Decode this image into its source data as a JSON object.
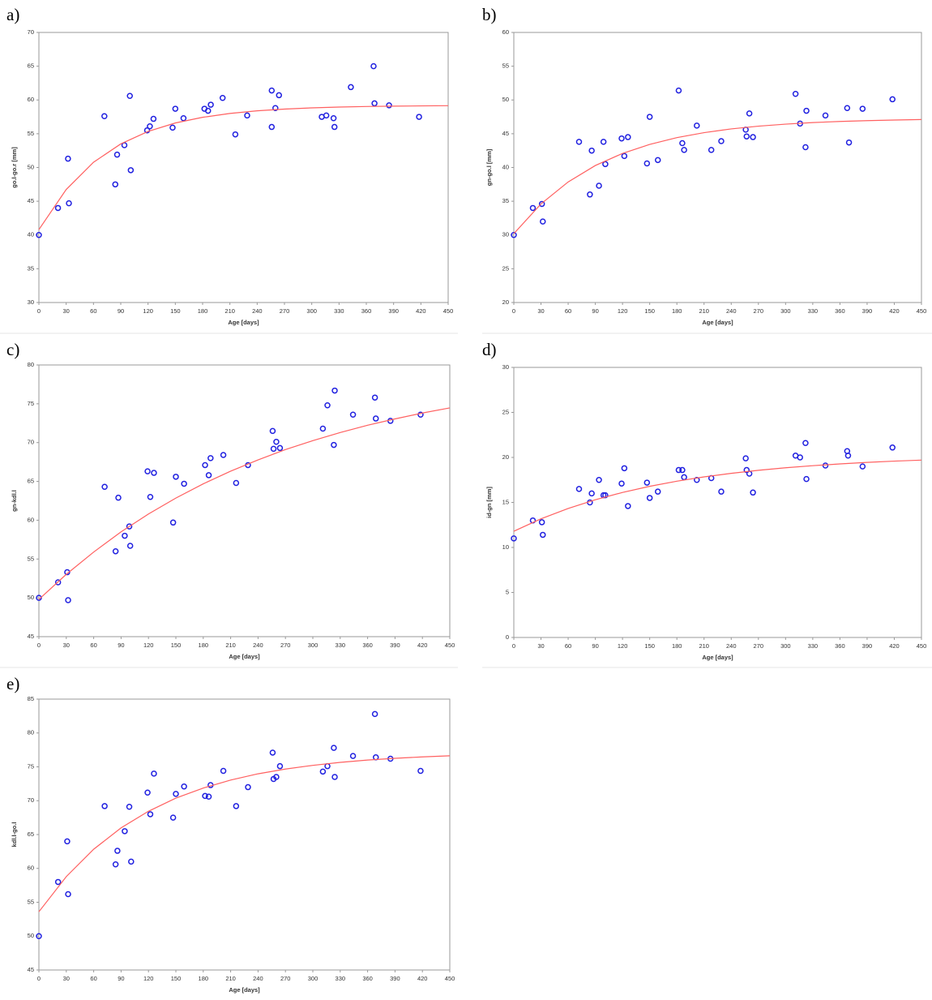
{
  "chart_data": [
    {
      "type": "scatter",
      "title": "a)",
      "x_label": "Age [days]",
      "y_label": "go.l-go.r [mm]",
      "xlim": [
        0,
        450
      ],
      "xticks": [
        0,
        30,
        60,
        90,
        120,
        150,
        180,
        210,
        240,
        270,
        300,
        330,
        360,
        390,
        420,
        450
      ],
      "ylim": [
        30,
        70
      ],
      "yticks": [
        30,
        35,
        40,
        45,
        50,
        55,
        60,
        65,
        70
      ],
      "series": [
        {
          "style": "markers",
          "color": "#2020e0",
          "x": [
            0,
            21,
            32,
            33,
            72,
            84,
            86,
            94,
            100,
            101,
            119,
            122,
            126,
            147,
            150,
            159,
            182,
            186,
            189,
            202,
            216,
            229,
            256,
            256,
            260,
            264,
            311,
            316,
            324,
            325,
            343,
            368,
            369,
            385,
            418
          ],
          "values": [
            40,
            44,
            51.3,
            44.7,
            57.6,
            47.5,
            51.9,
            53.3,
            60.6,
            49.6,
            55.5,
            56.1,
            57.2,
            55.9,
            58.7,
            57.3,
            58.7,
            58.4,
            59.3,
            60.3,
            54.9,
            57.7,
            56.0,
            61.4,
            58.8,
            60.7,
            57.5,
            57.7,
            57.3,
            56.0,
            61.9,
            65.0,
            59.5,
            59.2,
            57.5
          ]
        },
        {
          "style": "line",
          "color": "#ff6060",
          "x": [
            0,
            30,
            60,
            90,
            120,
            150,
            180,
            210,
            240,
            270,
            300,
            330,
            360,
            390,
            420,
            450
          ],
          "values": [
            40.8,
            46.74,
            50.77,
            53.49,
            55.34,
            56.59,
            57.43,
            58.0,
            58.39,
            58.65,
            58.83,
            58.95,
            59.03,
            59.08,
            59.12,
            59.15
          ]
        }
      ]
    },
    {
      "type": "scatter",
      "title": "b)",
      "x_label": "Age [days]",
      "y_label": "gn-go.l [mm]",
      "xlim": [
        0,
        450
      ],
      "xticks": [
        0,
        30,
        60,
        90,
        120,
        150,
        180,
        210,
        240,
        270,
        300,
        330,
        360,
        390,
        420,
        450
      ],
      "ylim": [
        20,
        60
      ],
      "yticks": [
        20,
        25,
        30,
        35,
        40,
        45,
        50,
        55,
        60
      ],
      "series": [
        {
          "style": "markers",
          "color": "#2020e0",
          "x": [
            0,
            21,
            31,
            32,
            72,
            84,
            86,
            94,
            99,
            101,
            119,
            122,
            126,
            147,
            150,
            159,
            182,
            186,
            188,
            202,
            218,
            229,
            256,
            257,
            260,
            264,
            311,
            316,
            322,
            323,
            344,
            368,
            370,
            385,
            418
          ],
          "values": [
            30,
            34,
            34.6,
            32,
            43.8,
            36,
            42.5,
            37.3,
            43.8,
            40.5,
            44.3,
            41.7,
            44.5,
            40.6,
            47.5,
            41.1,
            51.4,
            43.6,
            42.6,
            46.2,
            42.6,
            43.9,
            45.6,
            44.6,
            48.0,
            44.5,
            50.9,
            46.5,
            43.0,
            48.4,
            47.7,
            48.8,
            43.7,
            48.7,
            50.1
          ]
        },
        {
          "style": "line",
          "color": "#ff6060",
          "x": [
            0,
            30,
            60,
            90,
            120,
            150,
            180,
            210,
            240,
            270,
            300,
            330,
            360,
            390,
            420,
            450
          ],
          "values": [
            30.2,
            34.6,
            37.86,
            40.29,
            42.08,
            43.42,
            44.42,
            45.16,
            45.71,
            46.12,
            46.42,
            46.65,
            46.82,
            46.94,
            47.03,
            47.1
          ]
        }
      ]
    },
    {
      "type": "scatter",
      "title": "c)",
      "x_label": "Age [days]",
      "y_label": "gn-kdl.l",
      "xlim": [
        0,
        450
      ],
      "xticks": [
        0,
        30,
        60,
        90,
        120,
        150,
        180,
        210,
        240,
        270,
        300,
        330,
        360,
        390,
        420,
        450
      ],
      "ylim": [
        45,
        80
      ],
      "yticks": [
        45,
        50,
        55,
        60,
        65,
        70,
        75,
        80
      ],
      "series": [
        {
          "style": "markers",
          "color": "#2020e0",
          "x": [
            0,
            21,
            31,
            32,
            72,
            84,
            87,
            94,
            99,
            100,
            119,
            122,
            126,
            147,
            150,
            159,
            182,
            186,
            188,
            202,
            216,
            229,
            256,
            257,
            260,
            264,
            311,
            316,
            323,
            324,
            344,
            368,
            369,
            385,
            418
          ],
          "values": [
            50,
            52,
            53.3,
            49.7,
            64.3,
            56,
            62.9,
            58,
            59.2,
            56.7,
            66.3,
            63,
            66.1,
            59.7,
            65.6,
            64.7,
            67.1,
            65.8,
            68,
            68.4,
            64.8,
            67.1,
            71.5,
            69.2,
            70.1,
            69.3,
            71.8,
            74.8,
            69.7,
            76.7,
            73.6,
            75.8,
            73.1,
            72.8,
            73.6
          ]
        },
        {
          "style": "line",
          "color": "#ff6060",
          "x": [
            0,
            30,
            60,
            90,
            120,
            150,
            180,
            210,
            240,
            270,
            300,
            330,
            360,
            390,
            420,
            450
          ],
          "values": [
            49.8,
            53.03,
            55.9,
            58.5,
            60.8,
            62.85,
            64.69,
            66.32,
            67.77,
            69.1,
            70.25,
            71.3,
            72.24,
            73.05,
            73.81,
            74.47
          ]
        }
      ]
    },
    {
      "type": "scatter",
      "title": "d)",
      "x_label": "Age [days]",
      "y_label": "id-gn [mm]",
      "xlim": [
        0,
        450
      ],
      "xticks": [
        0,
        30,
        60,
        90,
        120,
        150,
        180,
        210,
        240,
        270,
        300,
        330,
        360,
        390,
        420,
        450
      ],
      "ylim": [
        0,
        30
      ],
      "yticks": [
        0,
        5,
        10,
        15,
        20,
        25,
        30
      ],
      "series": [
        {
          "style": "markers",
          "color": "#2020e0",
          "x": [
            0,
            21,
            31,
            32,
            72,
            84,
            86,
            94,
            99,
            101,
            119,
            122,
            126,
            147,
            150,
            159,
            182,
            186,
            188,
            202,
            218,
            229,
            256,
            257,
            260,
            264,
            311,
            316,
            322,
            323,
            344,
            368,
            369,
            385,
            418
          ],
          "values": [
            11,
            13,
            12.8,
            11.4,
            16.5,
            15,
            16,
            17.5,
            15.8,
            15.8,
            17.1,
            18.8,
            14.6,
            17.2,
            15.5,
            16.2,
            18.6,
            18.6,
            17.8,
            17.5,
            17.7,
            16.2,
            19.9,
            18.6,
            18.2,
            16.1,
            20.2,
            20,
            21.6,
            17.6,
            19.1,
            20.7,
            20.2,
            19,
            21.1
          ]
        },
        {
          "style": "line",
          "color": "#ff6060",
          "x": [
            0,
            30,
            60,
            90,
            120,
            150,
            180,
            210,
            240,
            270,
            300,
            330,
            360,
            390,
            420,
            450
          ],
          "values": [
            11.8,
            13.18,
            14.33,
            15.3,
            16.11,
            16.79,
            17.36,
            17.84,
            18.23,
            18.57,
            18.85,
            19.08,
            19.28,
            19.45,
            19.59,
            19.7
          ]
        }
      ]
    },
    {
      "type": "scatter",
      "title": "e)",
      "x_label": "Age [days]",
      "y_label": "kdl.l-go.l",
      "xlim": [
        0,
        450
      ],
      "xticks": [
        0,
        30,
        60,
        90,
        120,
        150,
        180,
        210,
        240,
        270,
        300,
        330,
        360,
        390,
        420,
        450
      ],
      "ylim": [
        45,
        85
      ],
      "yticks": [
        45,
        50,
        55,
        60,
        65,
        70,
        75,
        80,
        85
      ],
      "series": [
        {
          "style": "markers",
          "color": "#2020e0",
          "x": [
            0,
            21,
            31,
            32,
            72,
            84,
            86,
            94,
            99,
            101,
            119,
            122,
            126,
            147,
            150,
            159,
            182,
            186,
            188,
            202,
            216,
            229,
            256,
            257,
            260,
            264,
            311,
            316,
            323,
            324,
            344,
            368,
            369,
            385,
            418
          ],
          "values": [
            50,
            58,
            64,
            56.2,
            69.2,
            60.6,
            62.6,
            65.5,
            69.1,
            61,
            71.2,
            68,
            74,
            67.5,
            71,
            72.1,
            70.7,
            70.6,
            72.3,
            74.4,
            69.2,
            72,
            77.1,
            73.2,
            73.5,
            75.1,
            74.3,
            75.1,
            77.8,
            73.5,
            76.6,
            82.8,
            76.4,
            76.2,
            74.4
          ]
        },
        {
          "style": "line",
          "color": "#ff6060",
          "x": [
            0,
            30,
            60,
            90,
            120,
            150,
            180,
            210,
            240,
            270,
            300,
            330,
            360,
            390,
            420,
            450
          ],
          "values": [
            53.6,
            58.79,
            62.83,
            65.99,
            68.44,
            70.38,
            71.87,
            73.05,
            73.97,
            74.67,
            75.22,
            75.66,
            76.0,
            76.26,
            76.47,
            76.63
          ]
        }
      ]
    }
  ]
}
